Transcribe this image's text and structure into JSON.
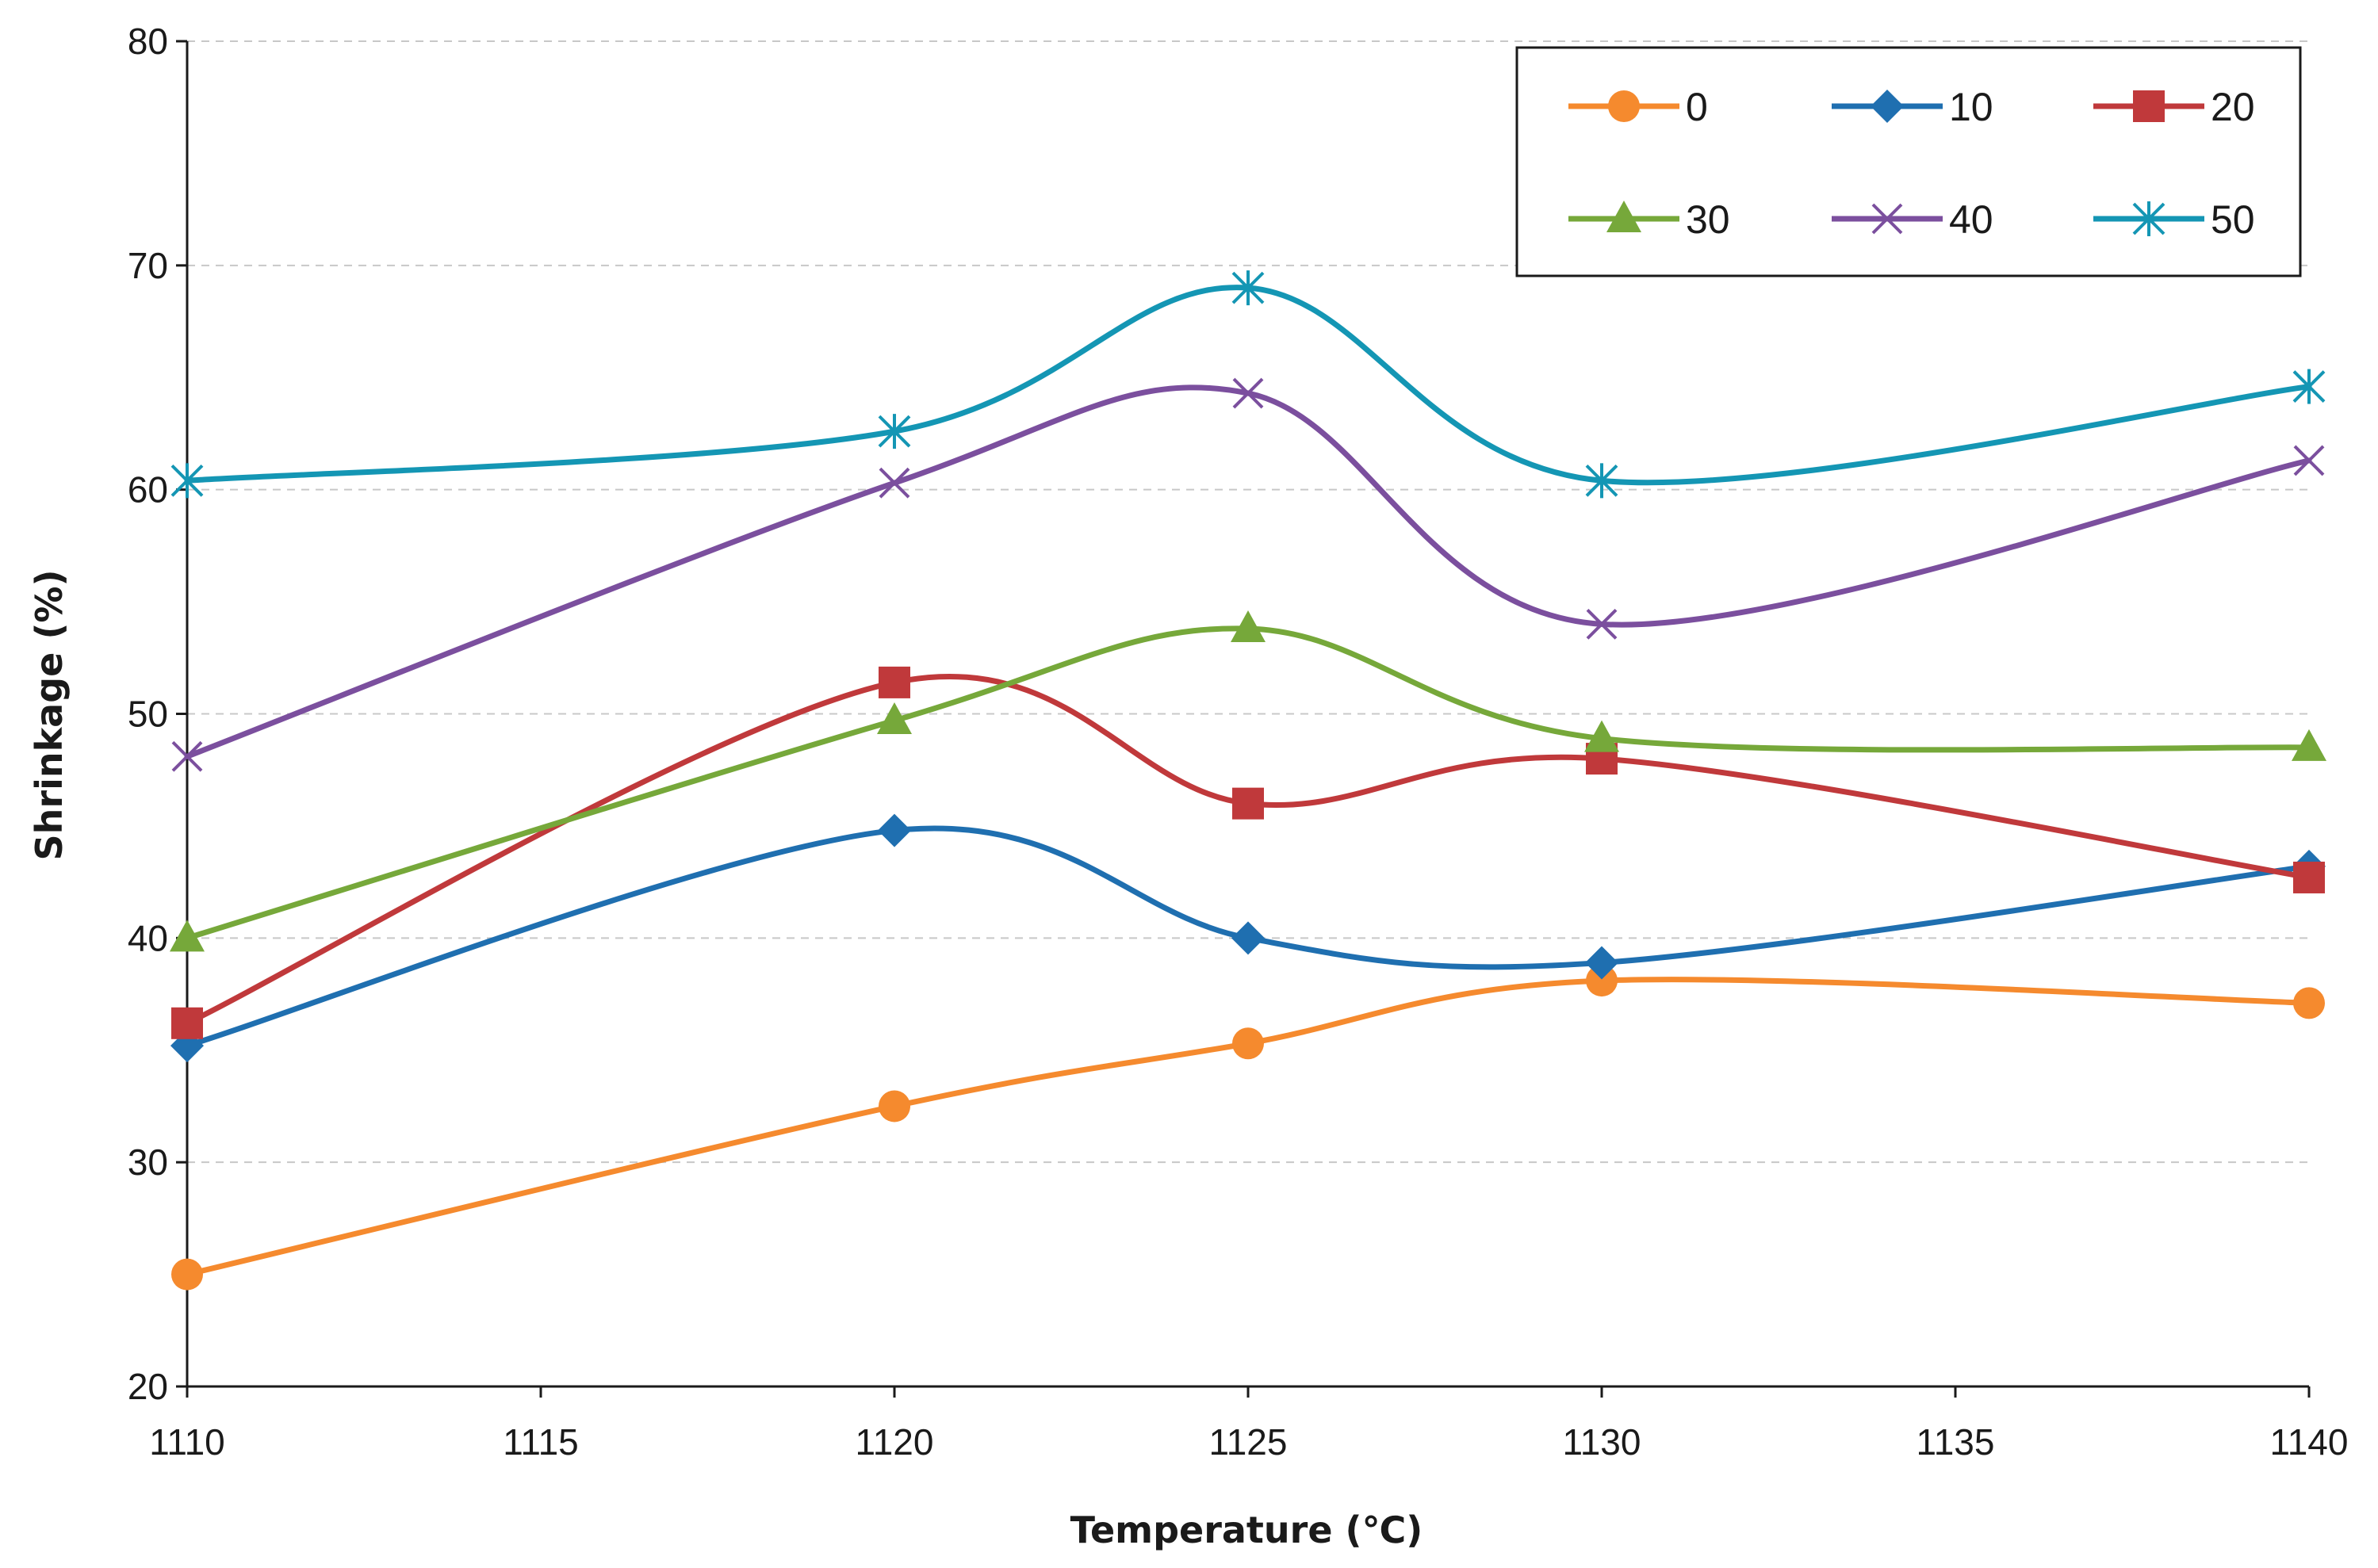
{
  "chart_data": {
    "type": "line",
    "smooth": true,
    "title": "",
    "xlabel": "Temperature (℃)",
    "ylabel": "Shrinkage (%)",
    "xlim": [
      1110,
      1140
    ],
    "ylim": [
      20,
      80
    ],
    "x_ticks": [
      "1110",
      "1115",
      "1120",
      "1125",
      "1130",
      "1135",
      "1140"
    ],
    "y_ticks": [
      "20",
      "30",
      "40",
      "50",
      "60",
      "70",
      "80"
    ],
    "gridlines": "horizontal-dashed",
    "legend_position": "top-right",
    "x": [
      1110,
      1120,
      1125,
      1130,
      1140
    ],
    "series": [
      {
        "name": "0",
        "color": "#F58A2E",
        "marker": "circle",
        "values": [
          25.0,
          32.5,
          35.3,
          38.1,
          37.1
        ]
      },
      {
        "name": "10",
        "color": "#1F6FB0",
        "marker": "diamond",
        "values": [
          35.2,
          44.8,
          40.0,
          38.9,
          43.2
        ]
      },
      {
        "name": "20",
        "color": "#C0393B",
        "marker": "square",
        "values": [
          36.2,
          51.4,
          46.0,
          48.0,
          42.7
        ]
      },
      {
        "name": "30",
        "color": "#76A83A",
        "marker": "triangle",
        "values": [
          40.0,
          49.7,
          53.8,
          48.9,
          48.5
        ]
      },
      {
        "name": "40",
        "color": "#7B4F9E",
        "marker": "x",
        "values": [
          48.1,
          60.3,
          64.3,
          54.0,
          61.3
        ]
      },
      {
        "name": "50",
        "color": "#1496B4",
        "marker": "star",
        "values": [
          60.4,
          62.6,
          69.0,
          60.4,
          64.6
        ]
      }
    ]
  }
}
